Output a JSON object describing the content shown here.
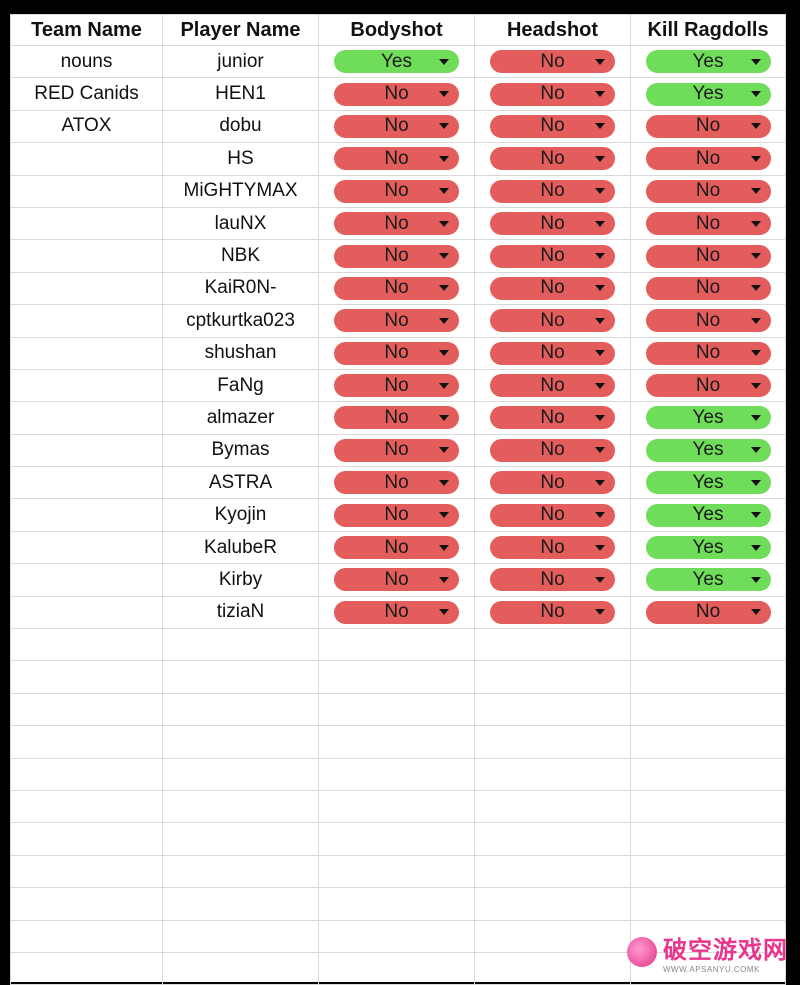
{
  "table": {
    "headers": [
      "Team Name",
      "Player Name",
      "Bodyshot",
      "Headshot",
      "Kill Ragdolls"
    ],
    "rows": [
      {
        "team": "nouns",
        "player": "junior",
        "bodyshot": "Yes",
        "headshot": "No",
        "ragdolls": "Yes"
      },
      {
        "team": "RED Canids",
        "player": "HEN1",
        "bodyshot": "No",
        "headshot": "No",
        "ragdolls": "Yes"
      },
      {
        "team": "ATOX",
        "player": "dobu",
        "bodyshot": "No",
        "headshot": "No",
        "ragdolls": "No"
      },
      {
        "team": "",
        "player": "HS",
        "bodyshot": "No",
        "headshot": "No",
        "ragdolls": "No"
      },
      {
        "team": "",
        "player": "MiGHTYMAX",
        "bodyshot": "No",
        "headshot": "No",
        "ragdolls": "No"
      },
      {
        "team": "",
        "player": "lauNX",
        "bodyshot": "No",
        "headshot": "No",
        "ragdolls": "No"
      },
      {
        "team": "",
        "player": "NBK",
        "bodyshot": "No",
        "headshot": "No",
        "ragdolls": "No"
      },
      {
        "team": "",
        "player": "KaiR0N-",
        "bodyshot": "No",
        "headshot": "No",
        "ragdolls": "No"
      },
      {
        "team": "",
        "player": "cptkurtka023",
        "bodyshot": "No",
        "headshot": "No",
        "ragdolls": "No"
      },
      {
        "team": "",
        "player": "shushan",
        "bodyshot": "No",
        "headshot": "No",
        "ragdolls": "No"
      },
      {
        "team": "",
        "player": "FaNg",
        "bodyshot": "No",
        "headshot": "No",
        "ragdolls": "No"
      },
      {
        "team": "",
        "player": "almazer",
        "bodyshot": "No",
        "headshot": "No",
        "ragdolls": "Yes"
      },
      {
        "team": "",
        "player": "Bymas",
        "bodyshot": "No",
        "headshot": "No",
        "ragdolls": "Yes"
      },
      {
        "team": "",
        "player": "ASTRA",
        "bodyshot": "No",
        "headshot": "No",
        "ragdolls": "Yes"
      },
      {
        "team": "",
        "player": "Kyojin",
        "bodyshot": "No",
        "headshot": "No",
        "ragdolls": "Yes"
      },
      {
        "team": "",
        "player": "KalubeR",
        "bodyshot": "No",
        "headshot": "No",
        "ragdolls": "Yes"
      },
      {
        "team": "",
        "player": "Kirby",
        "bodyshot": "No",
        "headshot": "No",
        "ragdolls": "Yes"
      },
      {
        "team": "",
        "player": "tiziaN",
        "bodyshot": "No",
        "headshot": "No",
        "ragdolls": "No"
      }
    ]
  },
  "colors": {
    "yes": "#6fdc5a",
    "no": "#e35d5d"
  },
  "icons": {
    "dropdown": "dropdown-arrow-icon"
  },
  "watermark": {
    "main": "破空游戏网",
    "sub": "WWW.APSANYU.COMK"
  }
}
